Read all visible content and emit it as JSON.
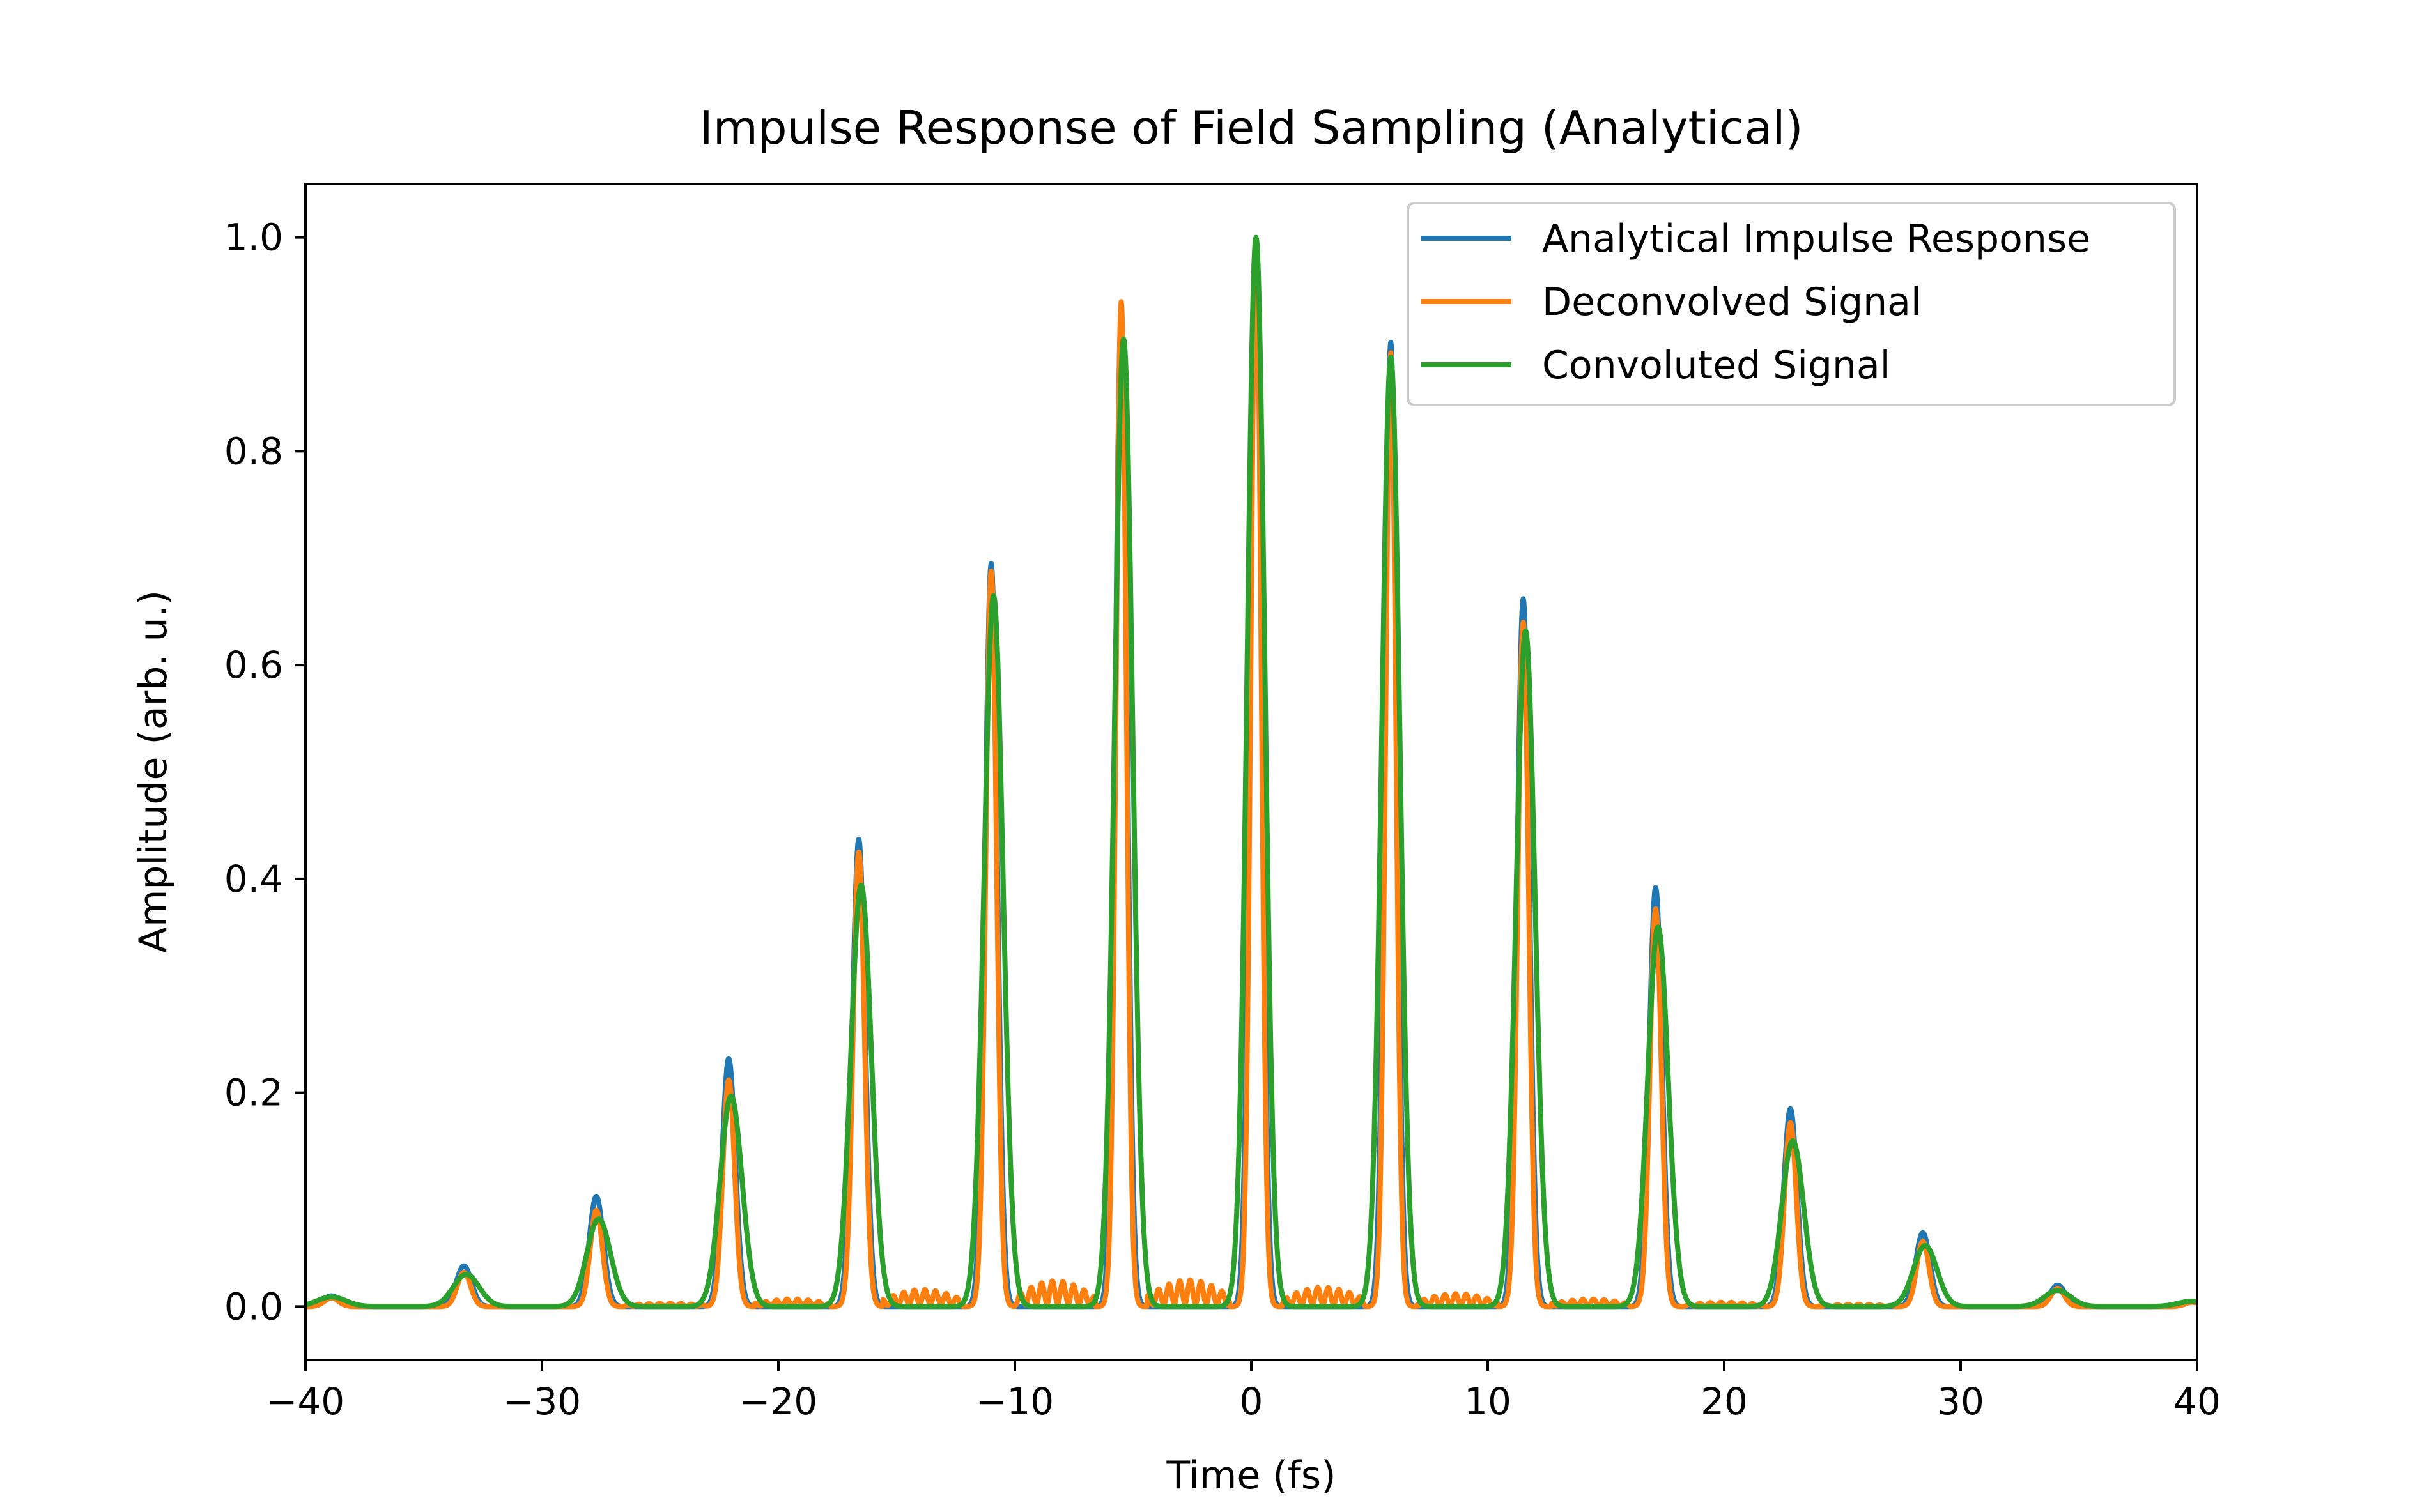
{
  "chart_data": {
    "type": "line",
    "title": "Impulse Response of Field Sampling (Analytical)",
    "xlabel": "Time (fs)",
    "ylabel": "Amplitude (arb. u.)",
    "xlim": [
      -40,
      40
    ],
    "ylim": [
      -0.05,
      1.05
    ],
    "xticks": [
      -40,
      -30,
      -20,
      -10,
      0,
      10,
      20,
      30,
      40
    ],
    "xtick_labels": [
      "−40",
      "−30",
      "−20",
      "−10",
      "0",
      "10",
      "20",
      "30",
      "40"
    ],
    "yticks": [
      0.0,
      0.2,
      0.4,
      0.6,
      0.8,
      1.0
    ],
    "ytick_labels": [
      "0.0",
      "0.2",
      "0.4",
      "0.6",
      "0.8",
      "1.0"
    ],
    "grid": false,
    "legend_position": "top-right",
    "series": [
      {
        "name": "Analytical Impulse Response",
        "color": "#1f77b4",
        "peaks": [
          {
            "t": -38.9,
            "a": 0.01,
            "w": 0.35
          },
          {
            "t": -33.3,
            "a": 0.038,
            "w": 0.32
          },
          {
            "t": -27.7,
            "a": 0.103,
            "w": 0.3
          },
          {
            "t": -22.1,
            "a": 0.232,
            "w": 0.28
          },
          {
            "t": -16.6,
            "a": 0.437,
            "w": 0.27
          },
          {
            "t": -11.0,
            "a": 0.695,
            "w": 0.26
          },
          {
            "t": -5.5,
            "a": 0.93,
            "w": 0.25
          },
          {
            "t": 0.2,
            "a": 1.0,
            "w": 0.25
          },
          {
            "t": 5.9,
            "a": 0.902,
            "w": 0.25
          },
          {
            "t": 11.5,
            "a": 0.662,
            "w": 0.26
          },
          {
            "t": 17.1,
            "a": 0.392,
            "w": 0.27
          },
          {
            "t": 22.8,
            "a": 0.185,
            "w": 0.28
          },
          {
            "t": 28.4,
            "a": 0.069,
            "w": 0.3
          },
          {
            "t": 34.1,
            "a": 0.02,
            "w": 0.32
          },
          {
            "t": 39.8,
            "a": 0.005,
            "w": 0.35
          }
        ]
      },
      {
        "name": "Deconvolved Signal",
        "color": "#ff7f0e",
        "peaks": [
          {
            "t": -38.9,
            "a": 0.008,
            "w": 0.3
          },
          {
            "t": -33.3,
            "a": 0.032,
            "w": 0.28
          },
          {
            "t": -27.7,
            "a": 0.09,
            "w": 0.26
          },
          {
            "t": -22.1,
            "a": 0.212,
            "w": 0.25
          },
          {
            "t": -16.6,
            "a": 0.425,
            "w": 0.24
          },
          {
            "t": -11.0,
            "a": 0.688,
            "w": 0.23
          },
          {
            "t": -5.5,
            "a": 0.94,
            "w": 0.22
          },
          {
            "t": 0.2,
            "a": 0.995,
            "w": 0.22
          },
          {
            "t": 5.9,
            "a": 0.892,
            "w": 0.22
          },
          {
            "t": 11.5,
            "a": 0.64,
            "w": 0.23
          },
          {
            "t": 17.1,
            "a": 0.372,
            "w": 0.24
          },
          {
            "t": 22.8,
            "a": 0.172,
            "w": 0.25
          },
          {
            "t": 28.4,
            "a": 0.061,
            "w": 0.26
          },
          {
            "t": 34.1,
            "a": 0.017,
            "w": 0.28
          },
          {
            "t": 39.8,
            "a": 0.004,
            "w": 0.3
          }
        ],
        "ripple": [
          {
            "from": -26.5,
            "to": -23.0,
            "level": 0.003
          },
          {
            "from": -21.0,
            "to": -17.8,
            "level": 0.007
          },
          {
            "from": -15.6,
            "to": -12.2,
            "level": 0.016
          },
          {
            "from": -10.0,
            "to": -6.6,
            "level": 0.024
          },
          {
            "from": -4.4,
            "to": -0.9,
            "level": 0.025
          },
          {
            "from": 1.3,
            "to": 4.8,
            "level": 0.018
          },
          {
            "from": 7.0,
            "to": 10.4,
            "level": 0.012
          },
          {
            "from": 12.7,
            "to": 16.0,
            "level": 0.007
          },
          {
            "from": 18.3,
            "to": 21.7,
            "level": 0.004
          },
          {
            "from": 24.0,
            "to": 27.2,
            "level": 0.002
          }
        ]
      },
      {
        "name": "Convoluted Signal",
        "color": "#2ca02c",
        "peaks": [
          {
            "t": -38.9,
            "a": 0.009,
            "w": 0.6
          },
          {
            "t": -33.2,
            "a": 0.03,
            "w": 0.55
          },
          {
            "t": -27.6,
            "a": 0.082,
            "w": 0.5
          },
          {
            "t": -22.0,
            "a": 0.197,
            "w": 0.46
          },
          {
            "t": -16.5,
            "a": 0.394,
            "w": 0.43
          },
          {
            "t": -10.9,
            "a": 0.665,
            "w": 0.4
          },
          {
            "t": -5.4,
            "a": 0.905,
            "w": 0.38
          },
          {
            "t": 0.2,
            "a": 1.0,
            "w": 0.37
          },
          {
            "t": 5.9,
            "a": 0.888,
            "w": 0.38
          },
          {
            "t": 11.6,
            "a": 0.632,
            "w": 0.4
          },
          {
            "t": 17.2,
            "a": 0.355,
            "w": 0.43
          },
          {
            "t": 22.9,
            "a": 0.155,
            "w": 0.46
          },
          {
            "t": 28.5,
            "a": 0.057,
            "w": 0.5
          },
          {
            "t": 34.1,
            "a": 0.015,
            "w": 0.55
          },
          {
            "t": 39.8,
            "a": 0.005,
            "w": 0.6
          }
        ]
      }
    ]
  }
}
